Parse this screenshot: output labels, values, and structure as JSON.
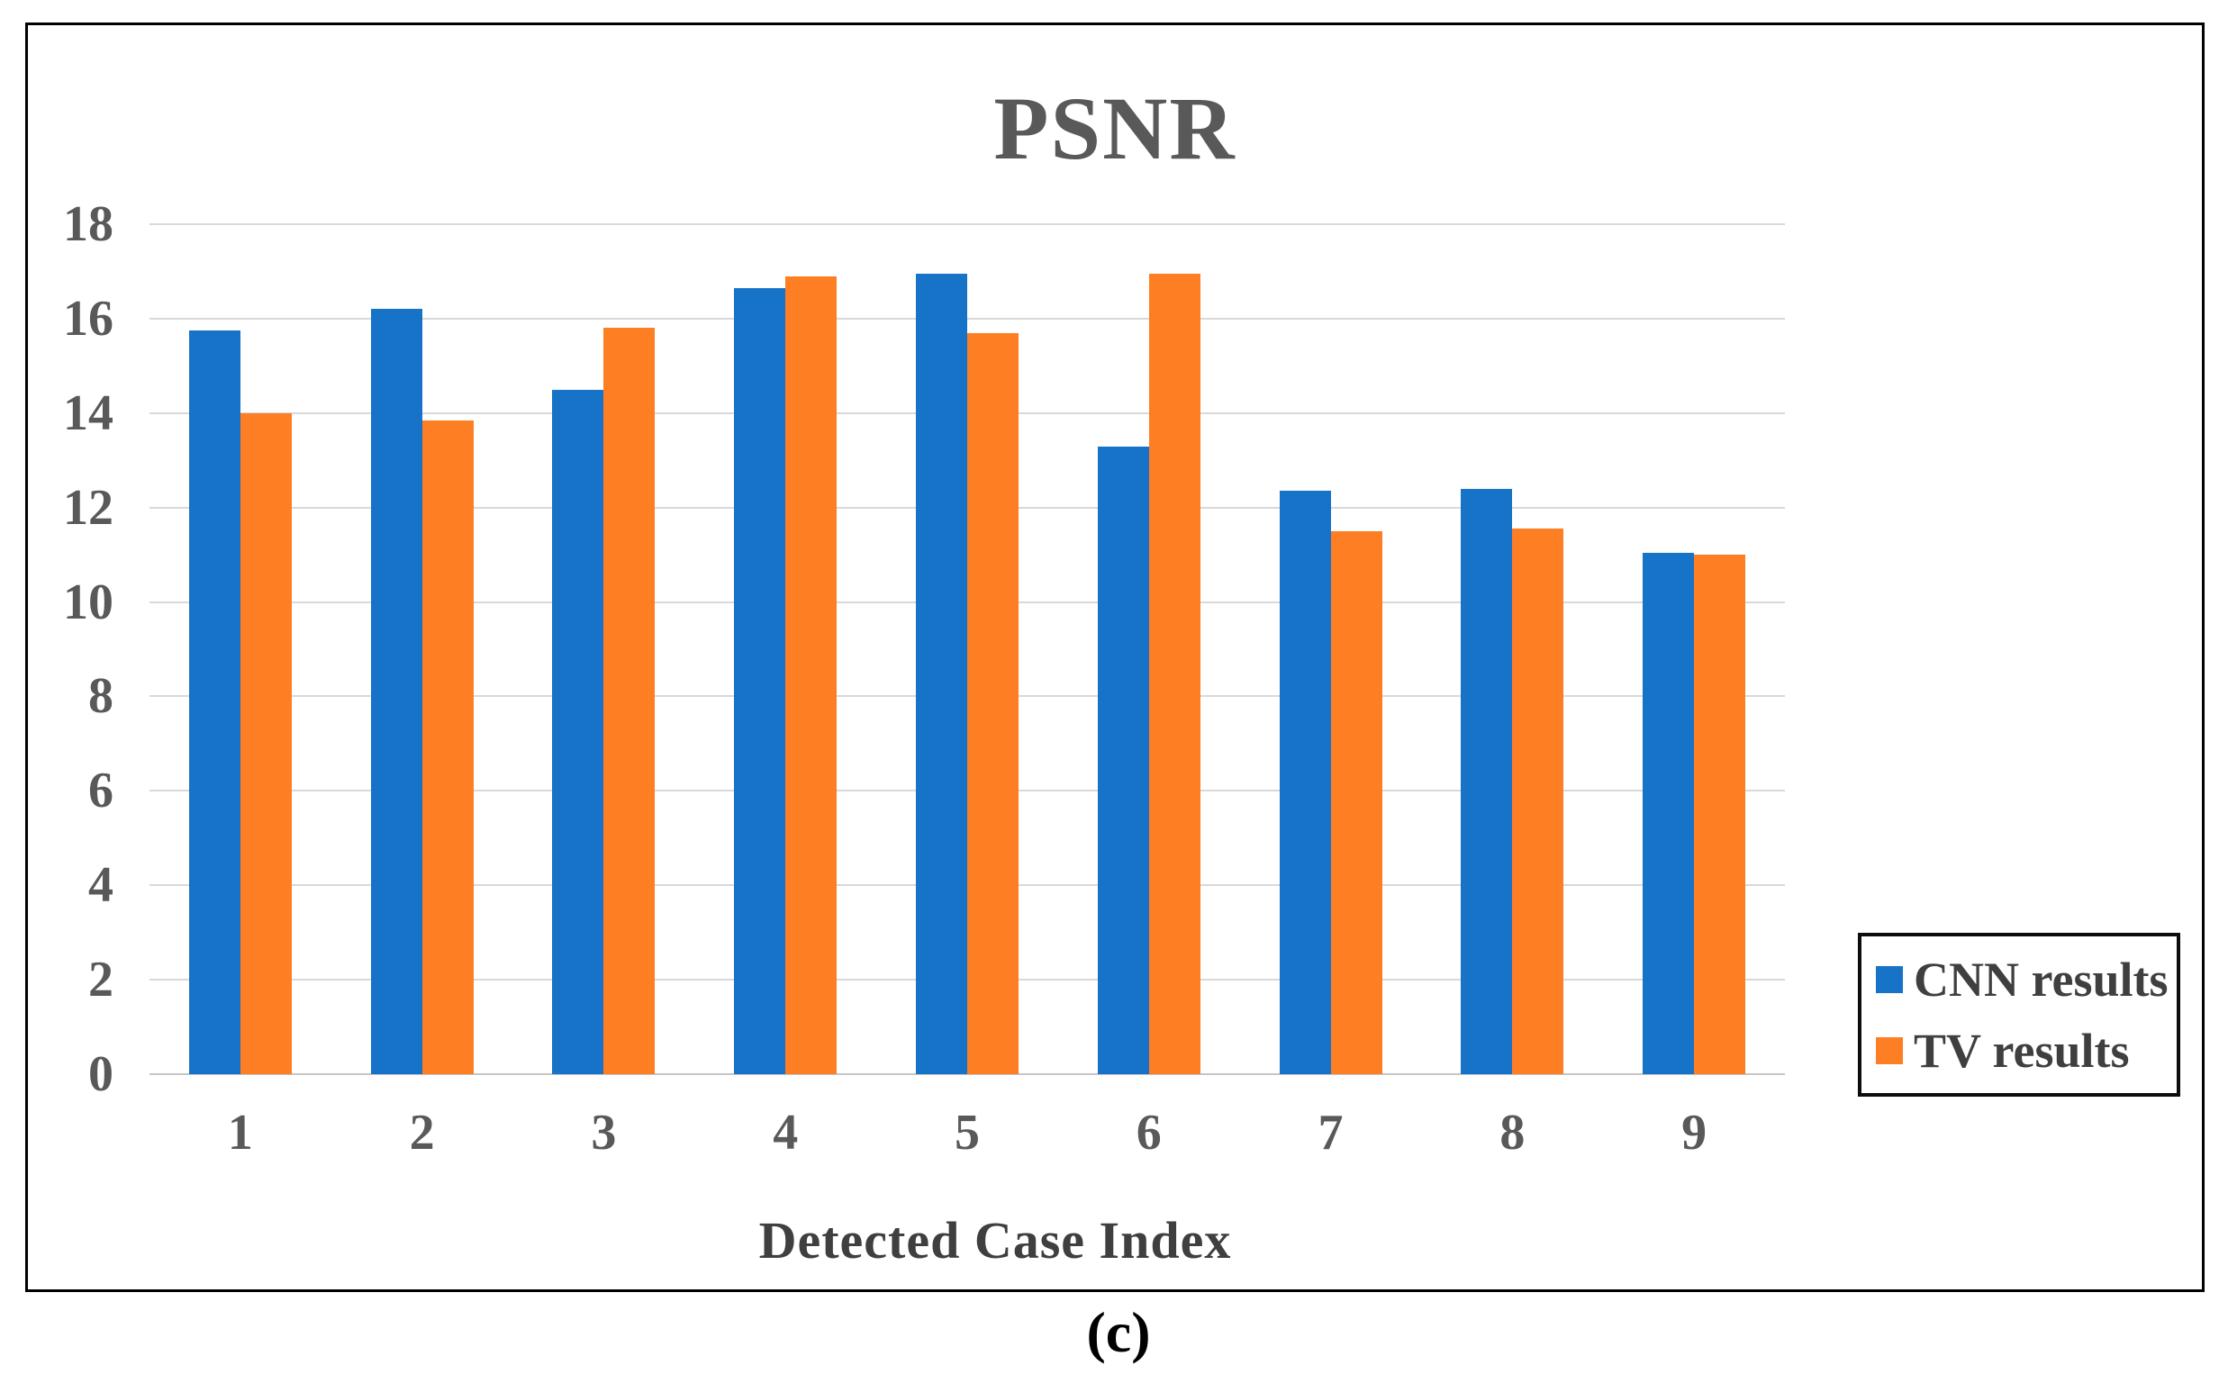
{
  "figure": {
    "caption": "(c)"
  },
  "chart_data": {
    "type": "bar",
    "title": "PSNR",
    "xlabel": "Detected Case Index",
    "ylabel": "",
    "categories": [
      "1",
      "2",
      "3",
      "4",
      "5",
      "6",
      "7",
      "8",
      "9"
    ],
    "series": [
      {
        "name": "CNN results",
        "color": "#1773c8",
        "values": [
          15.75,
          16.2,
          14.5,
          16.65,
          16.95,
          13.3,
          12.35,
          12.4,
          11.05
        ]
      },
      {
        "name": "TV results",
        "color": "#fd7e23",
        "values": [
          14.0,
          13.85,
          15.8,
          16.9,
          15.7,
          16.95,
          11.5,
          11.55,
          11.0
        ]
      }
    ],
    "ylim": [
      0,
      18
    ],
    "yticks": [
      0,
      2,
      4,
      6,
      8,
      10,
      12,
      14,
      16,
      18
    ],
    "grid": true,
    "legend_position": "bottom-right",
    "colors": {
      "title_text": "#595959",
      "tick_text": "#595959",
      "axis_title_text": "#3f3f3f",
      "gridline": "#d9d9d9",
      "frame_border": "#000000"
    }
  }
}
